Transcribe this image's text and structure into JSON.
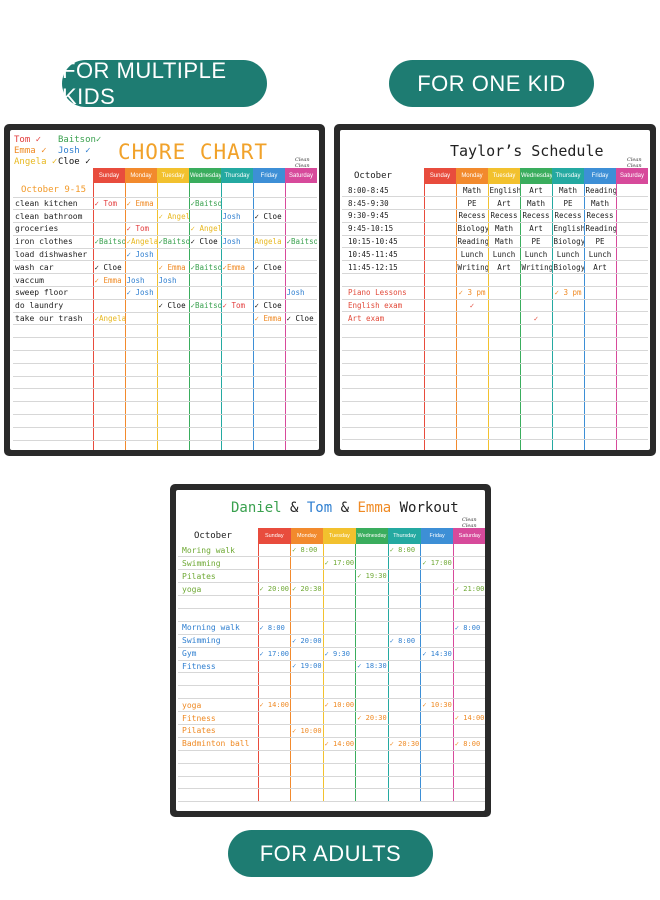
{
  "labels": {
    "multiple": "FOR MULTIPLE KIDS",
    "one": "FOR ONE KID",
    "adults": "FOR ADULTS"
  },
  "days": [
    "Sunday",
    "Monday",
    "Tuesday",
    "Wednesday",
    "Thursday",
    "Friday",
    "Saturday"
  ],
  "day_colors": [
    "#e84c3d",
    "#f28a2d",
    "#f2c12e",
    "#3aad5d",
    "#24a9a1",
    "#3d8fd6",
    "#d74a9b"
  ],
  "logo": "Clean Clean",
  "chore": {
    "title": "CHORE CHART",
    "legend": [
      [
        "Tom ✓",
        "Baitson✓"
      ],
      [
        "Emma ✓",
        "Josh ✓"
      ],
      [
        "Angela ✓",
        "Cloe ✓"
      ]
    ],
    "date": "October 9-15",
    "rows": [
      {
        "task": "clean kitchen",
        "cells": [
          "✓ Tom",
          "✓ Emma",
          "",
          "✓Baitson",
          "",
          "",
          ""
        ]
      },
      {
        "task": "clean bathroom",
        "cells": [
          "",
          "",
          "✓ Angela",
          "",
          "Josh",
          "✓ Cloe",
          ""
        ]
      },
      {
        "task": "groceries",
        "cells": [
          "",
          "✓ Tom",
          "",
          "✓ Angela",
          "",
          "",
          ""
        ]
      },
      {
        "task": "iron clothes",
        "cells": [
          "✓Baitson",
          "✓Angela",
          "✓Baitson",
          "✓ Cloe",
          "Josh",
          "Angela",
          "✓Baitson"
        ]
      },
      {
        "task": "load dishwasher",
        "cells": [
          "",
          "✓ Josh",
          "",
          "",
          "",
          "",
          ""
        ]
      },
      {
        "task": "wash car",
        "cells": [
          "✓ Cloe",
          "",
          "✓ Emma",
          "✓Baitson",
          "✓Emma",
          "✓ Cloe",
          ""
        ]
      },
      {
        "task": "vaccum",
        "cells": [
          "✓ Emma",
          "Josh",
          "Josh",
          "",
          "",
          "",
          ""
        ]
      },
      {
        "task": "sweep floor",
        "cells": [
          "",
          "✓ Josh",
          "",
          "",
          "",
          "",
          "Josh"
        ]
      },
      {
        "task": "do laundry",
        "cells": [
          "",
          "",
          "✓ Cloe",
          "✓Baitson",
          "✓ Tom",
          "✓ Cloe",
          ""
        ]
      },
      {
        "task": "take our trash",
        "cells": [
          "✓Angela",
          "",
          "",
          "",
          "",
          "✓ Emma",
          "✓ Cloe"
        ]
      }
    ]
  },
  "taylor": {
    "title": "Taylor’s Schedule",
    "month": "October",
    "rows": [
      {
        "time": "8:00-8:45",
        "cells": [
          "",
          "Math",
          "English",
          "Art",
          "Math",
          "Reading",
          ""
        ]
      },
      {
        "time": "8:45-9:30",
        "cells": [
          "",
          "PE",
          "Art",
          "Math",
          "PE",
          "Math",
          ""
        ]
      },
      {
        "time": "9:30-9:45",
        "cells": [
          "",
          "Recess",
          "Recess",
          "Recess",
          "Recess",
          "Recess",
          ""
        ]
      },
      {
        "time": "9:45-10:15",
        "cells": [
          "",
          "Biology",
          "Math",
          "Art",
          "English",
          "Reading",
          ""
        ]
      },
      {
        "time": "10:15-10:45",
        "cells": [
          "",
          "Reading",
          "Math",
          "PE",
          "Biology",
          "PE",
          ""
        ]
      },
      {
        "time": "10:45-11:45",
        "cells": [
          "",
          "Lunch",
          "Lunch",
          "Lunch",
          "Lunch",
          "Lunch",
          ""
        ]
      },
      {
        "time": "11:45-12:15",
        "cells": [
          "",
          "Writing",
          "Art",
          "Writing",
          "Biology",
          "Art",
          ""
        ]
      },
      {
        "time": "",
        "cells": [
          "",
          "",
          "",
          "",
          "",
          "",
          ""
        ]
      },
      {
        "time": "Piano Lessons",
        "cells": [
          "",
          "✓ 3 pm",
          "",
          "",
          "✓ 3 pm",
          "",
          ""
        ]
      },
      {
        "time": "English exam",
        "cells": [
          "",
          "✓",
          "",
          "",
          "",
          "",
          ""
        ]
      },
      {
        "time": "Art exam",
        "cells": [
          "",
          "",
          "",
          "✓",
          "",
          "",
          ""
        ]
      }
    ]
  },
  "workout": {
    "title": [
      "Daniel",
      " & ",
      "Tom",
      " & ",
      "Emma",
      " Workout"
    ],
    "month": "October",
    "rows": [
      {
        "act": "Moring walk",
        "cls": "g",
        "cells": [
          "",
          "✓ 8:00",
          "",
          "",
          "✓ 8:00",
          "",
          ""
        ]
      },
      {
        "act": "Swimming",
        "cls": "g",
        "cells": [
          "",
          "",
          "✓ 17:00",
          "",
          "",
          "✓ 17:00",
          ""
        ]
      },
      {
        "act": "Pilates",
        "cls": "g",
        "cells": [
          "",
          "",
          "",
          "✓ 19:30",
          "",
          "",
          ""
        ]
      },
      {
        "act": "yoga",
        "cls": "g",
        "cells": [
          "✓ 20:00",
          "✓ 20:30",
          "",
          "",
          "",
          "",
          "✓ 21:00"
        ]
      },
      {
        "act": "",
        "cls": "",
        "cells": [
          "",
          "",
          "",
          "",
          "",
          "",
          ""
        ]
      },
      {
        "act": "",
        "cls": "",
        "cells": [
          "",
          "",
          "",
          "",
          "",
          "",
          ""
        ]
      },
      {
        "act": "Morning walk",
        "cls": "b",
        "cells": [
          "✓ 8:00",
          "",
          "",
          "",
          "",
          "",
          "✓ 8:00"
        ]
      },
      {
        "act": "Swimming",
        "cls": "b",
        "cells": [
          "",
          "✓ 20:00",
          "",
          "",
          "✓ 8:00",
          "",
          ""
        ]
      },
      {
        "act": "Gym",
        "cls": "b",
        "cells": [
          "✓ 17:00",
          "",
          "✓ 9:30",
          "",
          "",
          "✓ 14:30",
          ""
        ]
      },
      {
        "act": "Fitness",
        "cls": "b",
        "cells": [
          "",
          "✓ 19:00",
          "",
          "✓ 18:30",
          "",
          "",
          ""
        ]
      },
      {
        "act": "",
        "cls": "",
        "cells": [
          "",
          "",
          "",
          "",
          "",
          "",
          ""
        ]
      },
      {
        "act": "",
        "cls": "",
        "cells": [
          "",
          "",
          "",
          "",
          "",
          "",
          ""
        ]
      },
      {
        "act": "yoga",
        "cls": "o",
        "cells": [
          "✓ 14:00",
          "",
          "✓ 10:00",
          "",
          "",
          "✓ 10:30",
          ""
        ]
      },
      {
        "act": "Fitness",
        "cls": "o",
        "cells": [
          "",
          "",
          "",
          "✓ 20:30",
          "",
          "",
          "✓ 14:00"
        ]
      },
      {
        "act": "Pilates",
        "cls": "o",
        "cells": [
          "",
          "✓ 10:00",
          "",
          "",
          "",
          "",
          ""
        ]
      },
      {
        "act": "Badminton ball",
        "cls": "o",
        "cells": [
          "",
          "",
          "✓ 14:00",
          "",
          "✓ 20:30",
          "",
          "✓ 8:00"
        ]
      }
    ]
  }
}
